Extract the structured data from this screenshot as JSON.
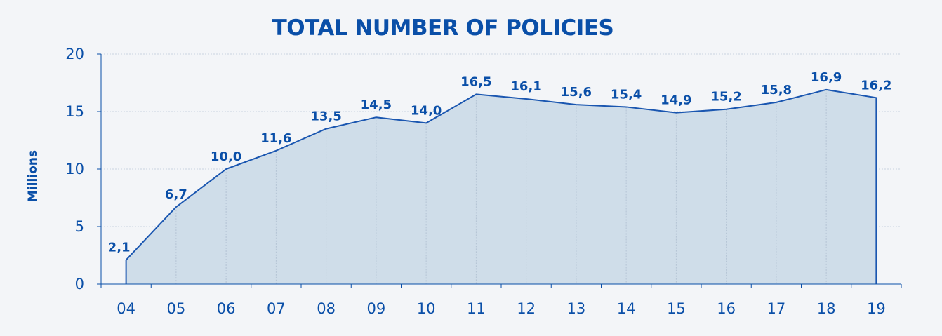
{
  "chart_data": {
    "type": "area",
    "title": "TOTAL NUMBER OF POLICIES",
    "xlabel": "",
    "ylabel": "Millions",
    "categories": [
      "04",
      "05",
      "06",
      "07",
      "08",
      "09",
      "10",
      "11",
      "12",
      "13",
      "14",
      "15",
      "16",
      "17",
      "18",
      "19"
    ],
    "values": [
      2.1,
      6.7,
      10.0,
      11.6,
      13.5,
      14.5,
      14.0,
      16.5,
      16.1,
      15.6,
      15.4,
      14.9,
      15.2,
      15.8,
      16.9,
      16.2
    ],
    "value_labels": [
      "2,1",
      "6,7",
      "10,0",
      "11,6",
      "13,5",
      "14,5",
      "14,0",
      "16,5",
      "16,1",
      "15,6",
      "15,4",
      "14,9",
      "15,2",
      "15,8",
      "16,9",
      "16,2"
    ],
    "yticks": [
      0,
      5,
      10,
      15,
      20
    ],
    "ylim": [
      0,
      20
    ],
    "grid": true,
    "legend": "none",
    "colors": {
      "line": "#1a56b0",
      "fill": "#cfdde9",
      "text": "#0a4fa8",
      "grid": "#c9d3df"
    }
  }
}
